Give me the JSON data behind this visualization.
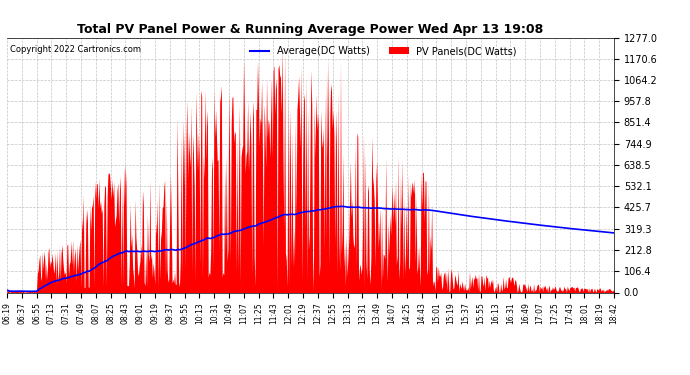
{
  "title": "Total PV Panel Power & Running Average Power Wed Apr 13 19:08",
  "copyright": "Copyright 2022 Cartronics.com",
  "legend_avg": "Average(DC Watts)",
  "legend_pv": "PV Panels(DC Watts)",
  "background_color": "#ffffff",
  "plot_bg_color": "#ffffff",
  "grid_color": "#aaaaaa",
  "pv_color": "#ff0000",
  "avg_color": "#0000ff",
  "yticks": [
    0.0,
    106.4,
    212.8,
    319.3,
    425.7,
    532.1,
    638.5,
    744.9,
    851.4,
    957.8,
    1064.2,
    1170.6,
    1277.0
  ],
  "ymax": 1277.0,
  "x_tick_labels": [
    "06:19",
    "06:37",
    "06:55",
    "07:13",
    "07:31",
    "07:49",
    "08:07",
    "08:25",
    "08:43",
    "09:01",
    "09:19",
    "09:37",
    "09:55",
    "10:13",
    "10:31",
    "10:49",
    "11:07",
    "11:25",
    "11:43",
    "12:01",
    "12:19",
    "12:37",
    "12:55",
    "13:13",
    "13:31",
    "13:49",
    "14:07",
    "14:25",
    "14:43",
    "15:01",
    "15:19",
    "15:37",
    "15:55",
    "16:13",
    "16:31",
    "16:49",
    "17:07",
    "17:25",
    "17:43",
    "18:01",
    "18:19",
    "18:42"
  ]
}
